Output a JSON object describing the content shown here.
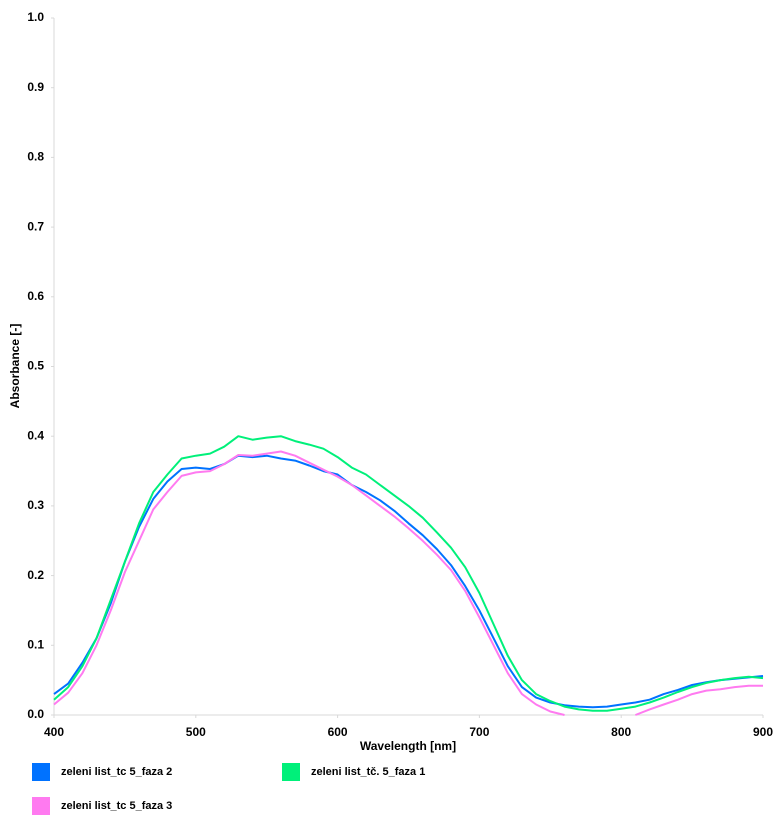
{
  "chart_data": {
    "type": "line",
    "x_label": "Wavelength [nm]",
    "y_label": "Absorbance [-]",
    "x": [
      400,
      410,
      420,
      430,
      440,
      450,
      460,
      470,
      480,
      490,
      500,
      510,
      520,
      530,
      540,
      550,
      560,
      570,
      580,
      590,
      600,
      610,
      620,
      630,
      640,
      650,
      660,
      670,
      680,
      690,
      700,
      710,
      720,
      730,
      740,
      750,
      760,
      770,
      780,
      790,
      800,
      810,
      820,
      830,
      840,
      850,
      860,
      870,
      880,
      890,
      900
    ],
    "series": [
      {
        "name": "zeleni list_tc 5_faza 2",
        "color": "#0072ff",
        "values": [
          0.03,
          0.045,
          0.075,
          0.11,
          0.16,
          0.22,
          0.27,
          0.31,
          0.335,
          0.353,
          0.355,
          0.353,
          0.36,
          0.372,
          0.37,
          0.372,
          0.368,
          0.365,
          0.358,
          0.35,
          0.345,
          0.33,
          0.32,
          0.308,
          0.293,
          0.275,
          0.258,
          0.238,
          0.215,
          0.185,
          0.15,
          0.11,
          0.07,
          0.04,
          0.025,
          0.018,
          0.014,
          0.012,
          0.011,
          0.012,
          0.015,
          0.018,
          0.022,
          0.03,
          0.036,
          0.043,
          0.047,
          0.05,
          0.052,
          0.054,
          0.056
        ]
      },
      {
        "name": "zeleni list_tč. 5_faza 1",
        "color": "#00f07a",
        "values": [
          0.022,
          0.04,
          0.07,
          0.11,
          0.165,
          0.22,
          0.275,
          0.32,
          0.345,
          0.368,
          0.372,
          0.375,
          0.385,
          0.4,
          0.395,
          0.398,
          0.4,
          0.393,
          0.388,
          0.382,
          0.37,
          0.355,
          0.345,
          0.33,
          0.315,
          0.3,
          0.283,
          0.262,
          0.24,
          0.212,
          0.175,
          0.13,
          0.085,
          0.05,
          0.03,
          0.02,
          0.012,
          0.008,
          0.006,
          0.006,
          0.009,
          0.012,
          0.018,
          0.025,
          0.033,
          0.04,
          0.046,
          0.05,
          0.053,
          0.055,
          0.053
        ]
      },
      {
        "name": "zeleni list_tc 5_faza 3",
        "color": "#ff7af0",
        "values": [
          0.015,
          0.032,
          0.06,
          0.1,
          0.15,
          0.205,
          0.25,
          0.295,
          0.32,
          0.343,
          0.348,
          0.35,
          0.36,
          0.373,
          0.372,
          0.375,
          0.378,
          0.372,
          0.362,
          0.352,
          0.342,
          0.33,
          0.315,
          0.3,
          0.285,
          0.268,
          0.25,
          0.23,
          0.208,
          0.178,
          0.14,
          0.1,
          0.06,
          0.03,
          0.015,
          0.005,
          0,
          null,
          null,
          null,
          null,
          0,
          0.008,
          0.015,
          0.022,
          0.03,
          0.035,
          0.037,
          0.04,
          0.042,
          0.042
        ]
      }
    ],
    "xlim": [
      400,
      900
    ],
    "xticks": [
      400,
      500,
      600,
      700,
      800,
      900
    ],
    "ylim": [
      0,
      1
    ],
    "yticks": [
      {
        "value": 0,
        "label": "0.0"
      },
      0.1,
      0.2,
      0.3,
      0.4,
      0.5,
      0.6,
      0.7,
      0.8,
      0.9,
      {
        "value": 1,
        "label": "1.0"
      }
    ],
    "grid": false
  }
}
